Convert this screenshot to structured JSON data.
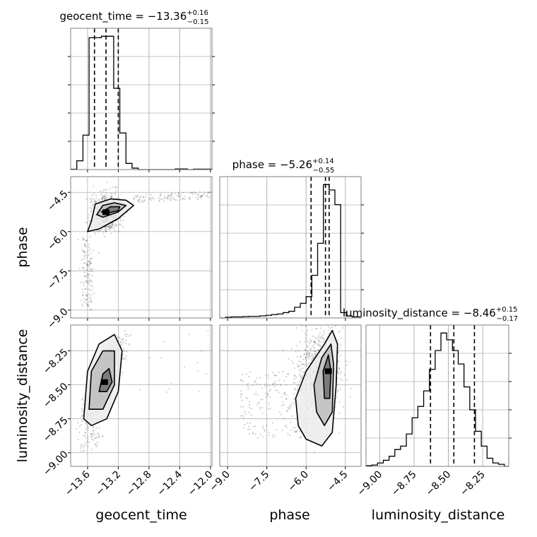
{
  "chart_data": {
    "type": "corner",
    "parameters": [
      "geocent_time",
      "phase",
      "luminosity_distance"
    ],
    "axis_labels": [
      "geocent_time",
      "phase",
      "luminosity_distance"
    ],
    "titles": [
      {
        "text": "geocent_time = −13.36",
        "sup": "+0.16",
        "sub": "−0.15"
      },
      {
        "text": "phase = −5.26",
        "sup": "+0.14",
        "sub": "−0.55"
      },
      {
        "text": "luminosity_distance = −8.46",
        "sup": "+0.15",
        "sub": "−0.17"
      }
    ],
    "ranges": {
      "geocent_time": [
        -13.82,
        -11.98
      ],
      "phase": [
        -9.3,
        -3.9
      ],
      "luminosity_distance": [
        -9.1,
        -8.06
      ]
    },
    "ticks": {
      "geocent_time": [
        -13.6,
        -13.2,
        -12.8,
        -12.4,
        -12.0
      ],
      "phase": [
        -9.0,
        -7.5,
        -6.0,
        -4.5
      ],
      "luminosity_distance": [
        -9.0,
        -8.75,
        -8.5,
        -8.25
      ]
    },
    "tick_labels": {
      "geocent_time": [
        "−13.6",
        "−13.2",
        "−12.8",
        "−12.4",
        "−12.0"
      ],
      "phase": [
        "−9.0",
        "−7.5",
        "−6.0",
        "−4.5"
      ],
      "luminosity_distance": [
        "−9.00",
        "−8.75",
        "−8.50",
        "−8.25"
      ]
    },
    "quantiles": {
      "geocent_time": [
        -13.51,
        -13.36,
        -13.2
      ],
      "phase": [
        -5.81,
        -5.26,
        -5.12
      ],
      "luminosity_distance": [
        -8.63,
        -8.46,
        -8.31
      ]
    },
    "histograms": {
      "geocent_time": {
        "edges": [
          -13.82,
          -13.74,
          -13.66,
          -13.58,
          -13.5,
          -13.42,
          -13.34,
          -13.26,
          -13.18,
          -13.1,
          -13.02,
          -12.94,
          -12.86,
          -12.78,
          -12.7,
          -12.62,
          -12.54,
          -12.46,
          -12.38,
          -12.3,
          -12.22,
          -12.14,
          -12.06,
          -11.98
        ],
        "counts": [
          2,
          60,
          235,
          900,
          900,
          910,
          910,
          555,
          250,
          42,
          10,
          0,
          0,
          0,
          0,
          0,
          0,
          4,
          4,
          0,
          3,
          3,
          3
        ]
      },
      "phase": {
        "edges": [
          -9.3,
          -9.08,
          -8.86,
          -8.64,
          -8.42,
          -8.2,
          -7.98,
          -7.76,
          -7.54,
          -7.32,
          -7.1,
          -6.88,
          -6.66,
          -6.44,
          -6.22,
          -6.0,
          -5.78,
          -5.56,
          -5.34,
          -5.12,
          -4.9,
          -4.68,
          -4.46,
          -4.24,
          -3.9
        ],
        "counts": [
          0,
          5,
          8,
          8,
          10,
          12,
          12,
          16,
          20,
          25,
          30,
          40,
          50,
          80,
          110,
          160,
          320,
          560,
          1000,
          960,
          850,
          40,
          15,
          8
        ]
      },
      "luminosity_distance": {
        "edges": [
          -9.1,
          -9.058,
          -9.016,
          -8.974,
          -8.932,
          -8.89,
          -8.848,
          -8.806,
          -8.764,
          -8.722,
          -8.68,
          -8.638,
          -8.596,
          -8.554,
          -8.512,
          -8.47,
          -8.428,
          -8.386,
          -8.344,
          -8.302,
          -8.26,
          -8.218,
          -8.176,
          -8.134,
          -8.092,
          -8.06
        ],
        "counts": [
          5,
          10,
          25,
          45,
          75,
          125,
          150,
          240,
          360,
          445,
          560,
          720,
          860,
          990,
          940,
          860,
          760,
          590,
          420,
          260,
          150,
          60,
          25,
          15,
          0
        ]
      }
    },
    "pair_samples": {
      "phase_vs_geocent_time": {
        "center": [
          -13.36,
          -5.26
        ],
        "contour_levels": [
          [
            [
              -13.55,
              -5.6
            ],
            [
              -13.5,
              -4.95
            ],
            [
              -13.3,
              -4.75
            ],
            [
              -13.1,
              -4.8
            ],
            [
              -13.0,
              -5.0
            ],
            [
              -13.2,
              -5.5
            ],
            [
              -13.45,
              -5.9
            ],
            [
              -13.6,
              -6.0
            ]
          ],
          [
            [
              -13.48,
              -5.35
            ],
            [
              -13.4,
              -5.0
            ],
            [
              -13.25,
              -4.9
            ],
            [
              -13.1,
              -5.0
            ],
            [
              -13.2,
              -5.25
            ],
            [
              -13.4,
              -5.45
            ]
          ],
          [
            [
              -13.42,
              -5.25
            ],
            [
              -13.3,
              -5.05
            ],
            [
              -13.18,
              -5.05
            ],
            [
              -13.2,
              -5.2
            ],
            [
              -13.35,
              -5.3
            ]
          ]
        ]
      },
      "luminosity_distance_vs_geocent_time": {
        "center": [
          -13.38,
          -8.48
        ],
        "contour_levels": [
          [
            [
              -13.65,
              -8.75
            ],
            [
              -13.6,
              -8.4
            ],
            [
              -13.45,
              -8.2
            ],
            [
              -13.25,
              -8.13
            ],
            [
              -13.15,
              -8.25
            ],
            [
              -13.2,
              -8.55
            ],
            [
              -13.35,
              -8.75
            ],
            [
              -13.55,
              -8.8
            ]
          ],
          [
            [
              -13.58,
              -8.68
            ],
            [
              -13.55,
              -8.4
            ],
            [
              -13.4,
              -8.25
            ],
            [
              -13.25,
              -8.25
            ],
            [
              -13.25,
              -8.5
            ],
            [
              -13.4,
              -8.68
            ]
          ],
          [
            [
              -13.45,
              -8.55
            ],
            [
              -13.4,
              -8.42
            ],
            [
              -13.32,
              -8.38
            ],
            [
              -13.28,
              -8.48
            ],
            [
              -13.35,
              -8.55
            ]
          ]
        ]
      },
      "luminosity_distance_vs_phase": {
        "center": [
          -5.15,
          -8.4
        ],
        "contour_levels": [
          [
            [
              -6.3,
              -8.8
            ],
            [
              -6.4,
              -8.6
            ],
            [
              -6.0,
              -8.4
            ],
            [
              -5.3,
              -8.2
            ],
            [
              -5.0,
              -8.1
            ],
            [
              -4.8,
              -8.2
            ],
            [
              -4.85,
              -8.5
            ],
            [
              -5.0,
              -8.85
            ],
            [
              -5.4,
              -8.95
            ],
            [
              -6.0,
              -8.9
            ]
          ],
          [
            [
              -5.6,
              -8.7
            ],
            [
              -5.7,
              -8.5
            ],
            [
              -5.4,
              -8.3
            ],
            [
              -5.05,
              -8.2
            ],
            [
              -4.95,
              -8.35
            ],
            [
              -5.0,
              -8.7
            ],
            [
              -5.3,
              -8.8
            ]
          ],
          [
            [
              -5.3,
              -8.6
            ],
            [
              -5.35,
              -8.4
            ],
            [
              -5.15,
              -8.28
            ],
            [
              -5.05,
              -8.4
            ],
            [
              -5.1,
              -8.6
            ]
          ]
        ]
      }
    },
    "grid": true
  }
}
